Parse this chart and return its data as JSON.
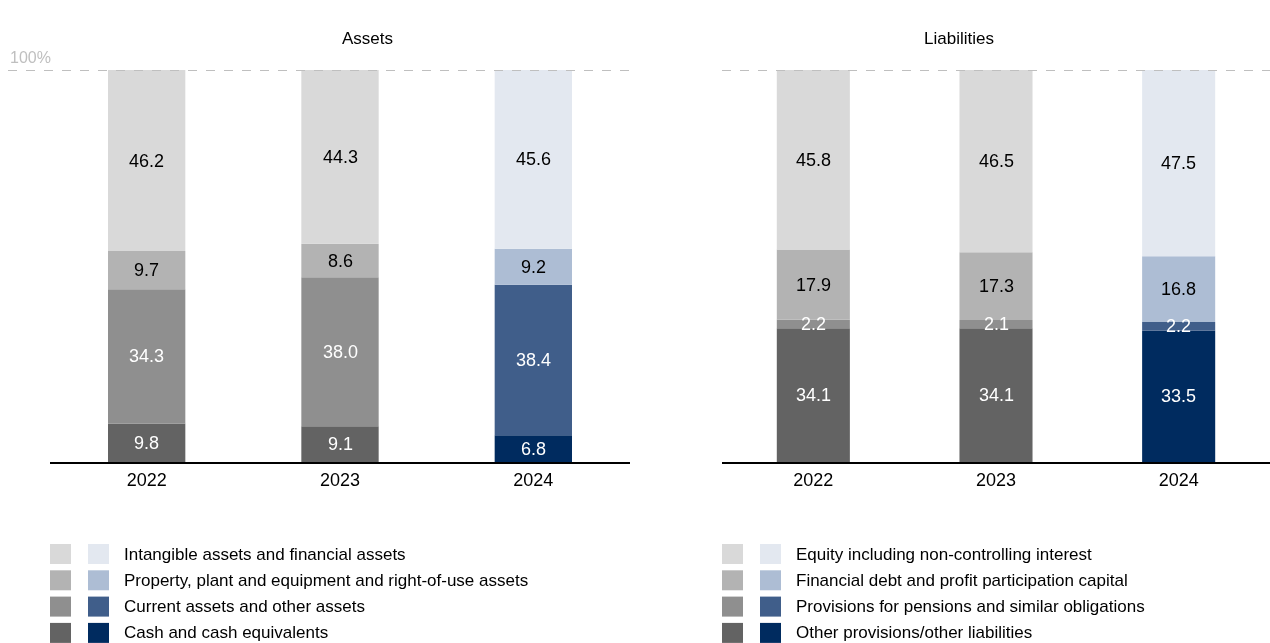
{
  "chart_data": [
    {
      "type": "bar",
      "title": "Assets",
      "categories": [
        "2022",
        "2023",
        "2024"
      ],
      "stacked": true,
      "data_labels": true,
      "ylim": [
        0,
        100
      ],
      "tick_labels": "x",
      "legend": "bottom",
      "ref_lines": [
        {
          "axis": "y",
          "value": 100,
          "label": "100%",
          "color": "#bfbfbf",
          "line_style": "dashed"
        }
      ],
      "series": [
        {
          "name": "Cash and cash equivalents",
          "colors": [
            "#636363",
            "#636363",
            "#002b5f"
          ],
          "values": [
            9.8,
            9.1,
            6.8
          ]
        },
        {
          "name": "Current assets and other assets",
          "colors": [
            "#8f8f8f",
            "#8f8f8f",
            "#405e8a"
          ],
          "values": [
            34.3,
            38.0,
            38.4
          ],
          "value_labels": [
            "34.3",
            "38.0",
            "38.4"
          ]
        },
        {
          "name": "Property, plant and equipment and right-of-use assets",
          "colors": [
            "#b3b3b3",
            "#b3b3b3",
            "#adbdd4"
          ],
          "values": [
            9.7,
            8.6,
            9.2
          ]
        },
        {
          "name": "Intangible assets and financial assets",
          "colors": [
            "#d9d9d9",
            "#d9d9d9",
            "#e3e8f0"
          ],
          "values": [
            46.2,
            44.3,
            45.6
          ]
        }
      ]
    },
    {
      "type": "bar",
      "title": "Liabilities",
      "categories": [
        "2022",
        "2023",
        "2024"
      ],
      "stacked": true,
      "data_labels": true,
      "ylim": [
        0,
        100
      ],
      "tick_labels": "x",
      "legend": "bottom",
      "ref_lines": [
        {
          "axis": "y",
          "value": 100,
          "label": null,
          "color": "#bfbfbf",
          "line_style": "dashed"
        }
      ],
      "series": [
        {
          "name": "Other provisions/other liabilities",
          "colors": [
            "#636363",
            "#636363",
            "#002b5f"
          ],
          "values": [
            34.1,
            34.1,
            33.5
          ]
        },
        {
          "name": "Provisions for pensions and similar obligations",
          "colors": [
            "#8f8f8f",
            "#8f8f8f",
            "#405e8a"
          ],
          "values": [
            2.2,
            2.1,
            2.2
          ]
        },
        {
          "name": "Financial debt and profit participation capital",
          "colors": [
            "#b3b3b3",
            "#b3b3b3",
            "#adbdd4"
          ],
          "values": [
            17.9,
            17.3,
            16.8
          ]
        },
        {
          "name": "Equity including non-controlling interest",
          "colors": [
            "#d9d9d9",
            "#d9d9d9",
            "#e3e8f0"
          ],
          "values": [
            45.8,
            46.5,
            47.5
          ]
        }
      ]
    }
  ]
}
